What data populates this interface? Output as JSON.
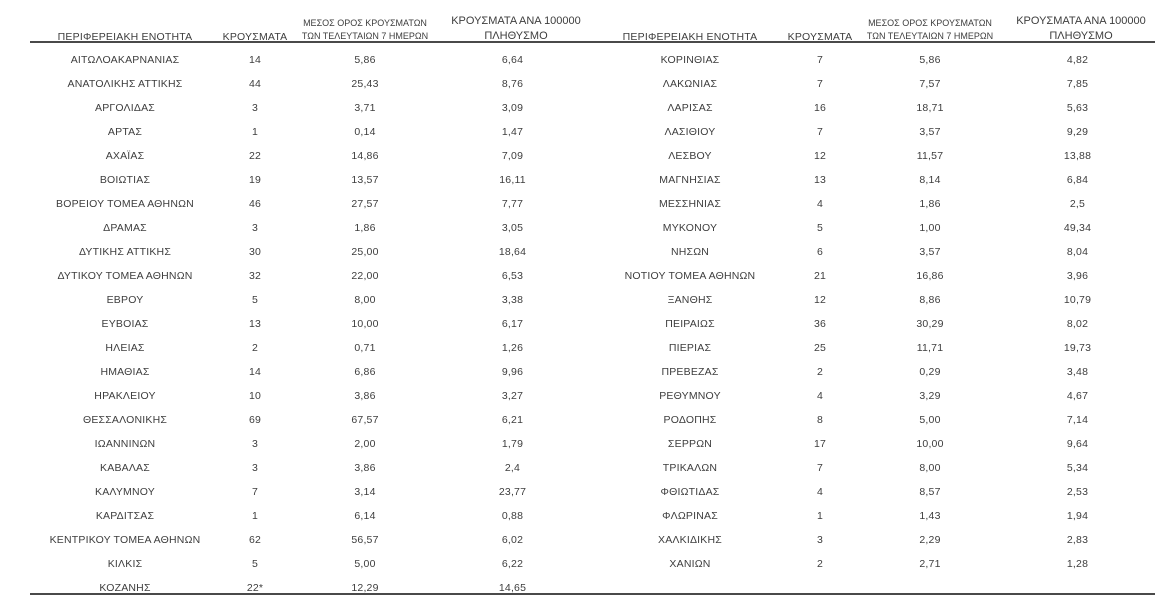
{
  "page": {
    "background": "#ffffff",
    "text_color": "#3d3d3d",
    "rule_color": "#4a4a4a"
  },
  "headers": {
    "region": "ΠΕΡΙΦΕΡΕΙΑΚΗ ΕΝΟΤΗΤΑ",
    "cases": "ΚΡΟΥΣΜΑΤΑ",
    "avg7_line1": "ΜΕΣΟΣ ΟΡΟΣ ΚΡΟΥΣΜΑΤΩΝ",
    "avg7_line2": "ΤΩΝ ΤΕΛΕΥΤΑΙΩΝ 7 ΗΜΕΡΩΝ",
    "per100k_line1": "ΚΡΟΥΣΜΑΤΑ ΑΝΑ 100000",
    "per100k_line2": "ΠΛΗΘΥΣΜΟ"
  },
  "left_table": {
    "rows": [
      [
        "ΑΙΤΩΛΟΑΚΑΡΝΑΝΙΑΣ",
        "14",
        "5,86",
        "6,64"
      ],
      [
        "ΑΝΑΤΟΛΙΚΗΣ ΑΤΤΙΚΗΣ",
        "44",
        "25,43",
        "8,76"
      ],
      [
        "ΑΡΓΟΛΙΔΑΣ",
        "3",
        "3,71",
        "3,09"
      ],
      [
        "ΑΡΤΑΣ",
        "1",
        "0,14",
        "1,47"
      ],
      [
        "ΑΧΑΪΑΣ",
        "22",
        "14,86",
        "7,09"
      ],
      [
        "ΒΟΙΩΤΙΑΣ",
        "19",
        "13,57",
        "16,11"
      ],
      [
        "ΒΟΡΕΙΟΥ ΤΟΜΕΑ ΑΘΗΝΩΝ",
        "46",
        "27,57",
        "7,77"
      ],
      [
        "ΔΡΑΜΑΣ",
        "3",
        "1,86",
        "3,05"
      ],
      [
        "ΔΥΤΙΚΗΣ ΑΤΤΙΚΗΣ",
        "30",
        "25,00",
        "18,64"
      ],
      [
        "ΔΥΤΙΚΟΥ ΤΟΜΕΑ ΑΘΗΝΩΝ",
        "32",
        "22,00",
        "6,53"
      ],
      [
        "ΕΒΡΟΥ",
        "5",
        "8,00",
        "3,38"
      ],
      [
        "ΕΥΒΟΙΑΣ",
        "13",
        "10,00",
        "6,17"
      ],
      [
        "ΗΛΕΙΑΣ",
        "2",
        "0,71",
        "1,26"
      ],
      [
        "ΗΜΑΘΙΑΣ",
        "14",
        "6,86",
        "9,96"
      ],
      [
        "ΗΡΑΚΛΕΙΟΥ",
        "10",
        "3,86",
        "3,27"
      ],
      [
        "ΘΕΣΣΑΛΟΝΙΚΗΣ",
        "69",
        "67,57",
        "6,21"
      ],
      [
        "ΙΩΑΝΝΙΝΩΝ",
        "3",
        "2,00",
        "1,79"
      ],
      [
        "ΚΑΒΑΛΑΣ",
        "3",
        "3,86",
        "2,4"
      ],
      [
        "ΚΑΛΥΜΝΟΥ",
        "7",
        "3,14",
        "23,77"
      ],
      [
        "ΚΑΡΔΙΤΣΑΣ",
        "1",
        "6,14",
        "0,88"
      ],
      [
        "ΚΕΝΤΡΙΚΟΥ ΤΟΜΕΑ ΑΘΗΝΩΝ",
        "62",
        "56,57",
        "6,02"
      ],
      [
        "ΚΙΛΚΙΣ",
        "5",
        "5,00",
        "6,22"
      ],
      [
        "ΚΟΖΑΝΗΣ",
        "22*",
        "12,29",
        "14,65"
      ]
    ]
  },
  "right_table": {
    "rows": [
      [
        "ΚΟΡΙΝΘΙΑΣ",
        "7",
        "5,86",
        "4,82"
      ],
      [
        "ΛΑΚΩΝΙΑΣ",
        "7",
        "7,57",
        "7,85"
      ],
      [
        "ΛΑΡΙΣΑΣ",
        "16",
        "18,71",
        "5,63"
      ],
      [
        "ΛΑΣΙΘΙΟΥ",
        "7",
        "3,57",
        "9,29"
      ],
      [
        "ΛΕΣΒΟΥ",
        "12",
        "11,57",
        "13,88"
      ],
      [
        "ΜΑΓΝΗΣΙΑΣ",
        "13",
        "8,14",
        "6,84"
      ],
      [
        "ΜΕΣΣΗΝΙΑΣ",
        "4",
        "1,86",
        "2,5"
      ],
      [
        "ΜΥΚΟΝΟΥ",
        "5",
        "1,00",
        "49,34"
      ],
      [
        "ΝΗΣΩΝ",
        "6",
        "3,57",
        "8,04"
      ],
      [
        "ΝΟΤΙΟΥ ΤΟΜΕΑ ΑΘΗΝΩΝ",
        "21",
        "16,86",
        "3,96"
      ],
      [
        "ΞΑΝΘΗΣ",
        "12",
        "8,86",
        "10,79"
      ],
      [
        "ΠΕΙΡΑΙΩΣ",
        "36",
        "30,29",
        "8,02"
      ],
      [
        "ΠΙΕΡΙΑΣ",
        "25",
        "11,71",
        "19,73"
      ],
      [
        "ΠΡΕΒΕΖΑΣ",
        "2",
        "0,29",
        "3,48"
      ],
      [
        "ΡΕΘΥΜΝΟΥ",
        "4",
        "3,29",
        "4,67"
      ],
      [
        "ΡΟΔΟΠΗΣ",
        "8",
        "5,00",
        "7,14"
      ],
      [
        "ΣΕΡΡΩΝ",
        "17",
        "10,00",
        "9,64"
      ],
      [
        "ΤΡΙΚΑΛΩΝ",
        "7",
        "8,00",
        "5,34"
      ],
      [
        "ΦΘΙΩΤΙΔΑΣ",
        "4",
        "8,57",
        "2,53"
      ],
      [
        "ΦΛΩΡΙΝΑΣ",
        "1",
        "1,43",
        "1,94"
      ],
      [
        "ΧΑΛΚΙΔΙΚΗΣ",
        "3",
        "2,29",
        "2,83"
      ],
      [
        "ΧΑΝΙΩΝ",
        "2",
        "2,71",
        "1,28"
      ]
    ]
  }
}
